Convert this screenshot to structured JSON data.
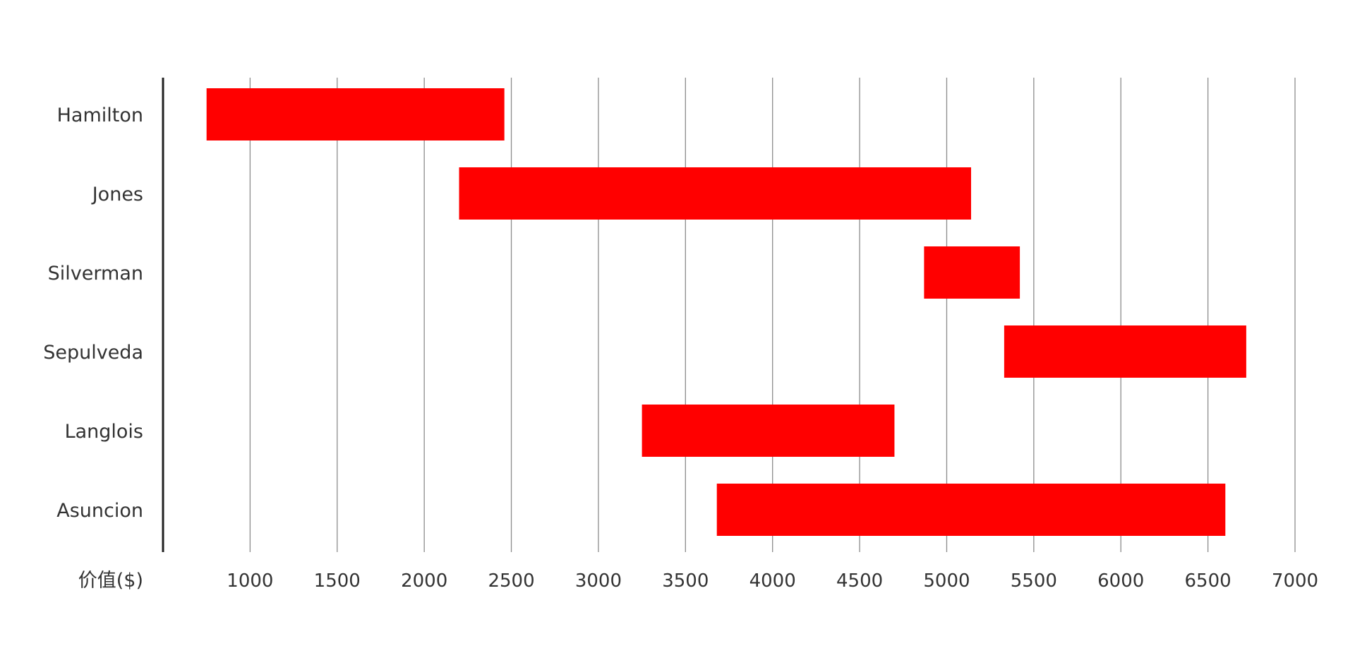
{
  "chart_data": {
    "type": "bar",
    "orientation": "horizontal",
    "subtype": "floating-range",
    "categories": [
      "Hamilton",
      "Jones",
      "Silverman",
      "Sepulveda",
      "Langlois",
      "Asuncion"
    ],
    "series": [
      {
        "ranges": [
          [
            750,
            2460
          ],
          [
            2200,
            5140
          ],
          [
            4870,
            5420
          ],
          [
            5330,
            6720
          ],
          [
            3250,
            4700
          ],
          [
            3680,
            6600
          ]
        ]
      }
    ],
    "xlabel": "价值($)",
    "xticks": [
      1000,
      1500,
      2000,
      2500,
      3000,
      3500,
      4000,
      4500,
      5000,
      5500,
      6000,
      6500,
      7000
    ],
    "xlim": [
      500,
      7000
    ],
    "grid": "vertical",
    "legend": "none",
    "colors": {
      "bar": "#ff0000"
    }
  }
}
